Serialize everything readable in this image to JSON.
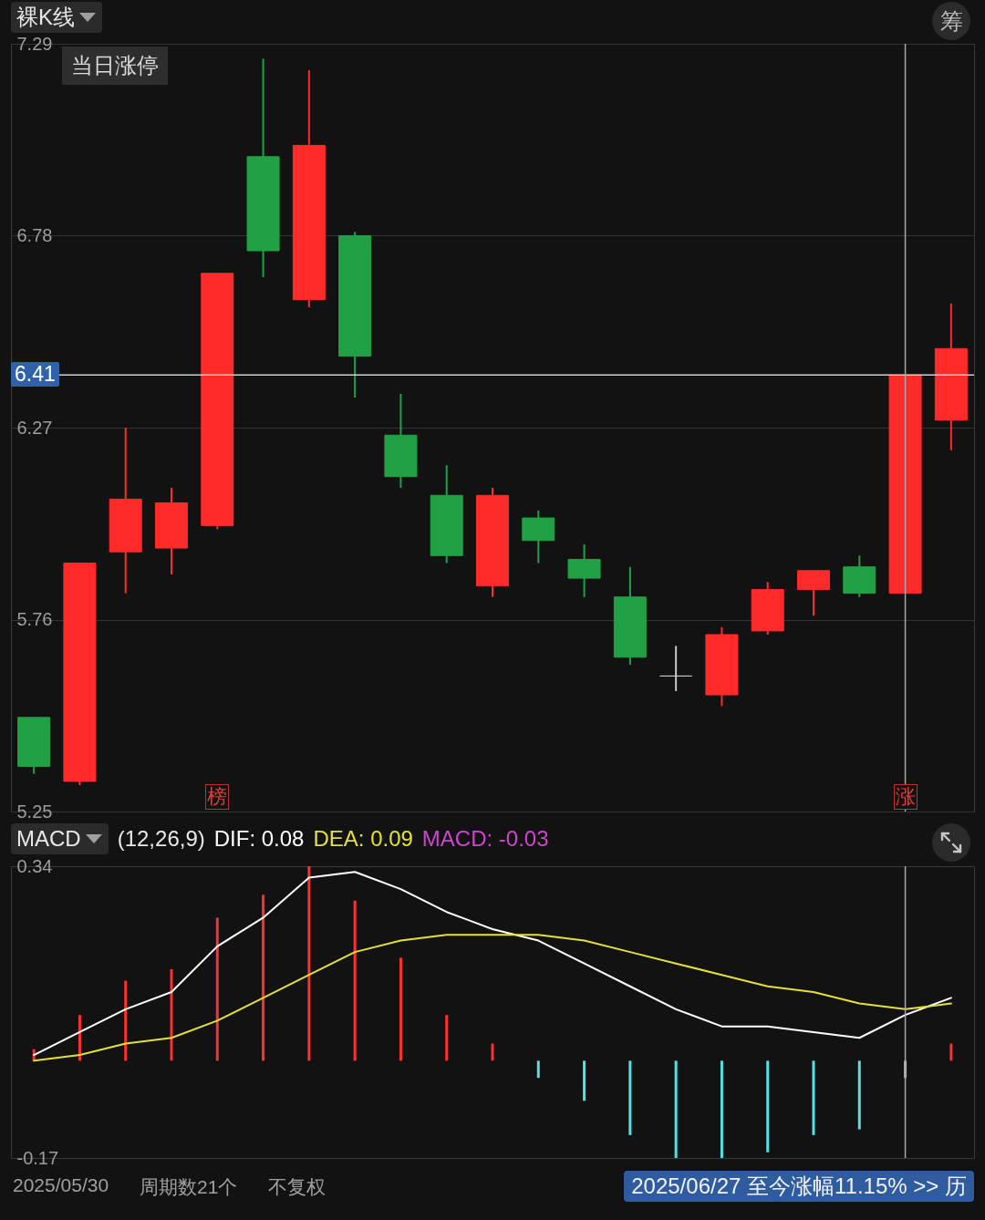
{
  "chart_data": [
    {
      "type": "candlestick",
      "title": "裸K线",
      "categories": [
        null,
        null,
        null,
        null,
        "榜",
        null,
        null,
        null,
        null,
        null,
        null,
        null,
        null,
        null,
        null,
        null,
        null,
        null,
        null,
        "涨",
        null
      ],
      "ohlc": [
        [
          5.5,
          5.5,
          5.35,
          5.37
        ],
        [
          5.33,
          5.91,
          5.32,
          5.91
        ],
        [
          5.94,
          6.27,
          5.83,
          6.08
        ],
        [
          5.95,
          6.11,
          5.88,
          6.07
        ],
        [
          6.01,
          6.68,
          6.0,
          6.68
        ],
        [
          6.99,
          7.25,
          6.67,
          6.74
        ],
        [
          6.61,
          7.22,
          6.59,
          7.02
        ],
        [
          6.78,
          6.79,
          6.35,
          6.46
        ],
        [
          6.25,
          6.36,
          6.11,
          6.14
        ],
        [
          6.09,
          6.17,
          5.91,
          5.93
        ],
        [
          5.85,
          6.11,
          5.82,
          6.09
        ],
        [
          6.03,
          6.05,
          5.91,
          5.97
        ],
        [
          5.92,
          5.96,
          5.82,
          5.87
        ],
        [
          5.82,
          5.9,
          5.64,
          5.66
        ],
        [
          5.61,
          5.69,
          5.57,
          5.61
        ],
        [
          5.56,
          5.74,
          5.53,
          5.72
        ],
        [
          5.73,
          5.86,
          5.72,
          5.84
        ],
        [
          5.84,
          5.89,
          5.77,
          5.89
        ],
        [
          5.9,
          5.93,
          5.82,
          5.83
        ],
        [
          5.83,
          6.41,
          5.83,
          6.41
        ],
        [
          6.29,
          6.6,
          6.21,
          6.48
        ]
      ],
      "colors": [
        "#22a045",
        "#ff2b2b",
        "#ff2b2b",
        "#ff2b2b",
        "#ff2b2b",
        "#22a045",
        "#ff2b2b",
        "#22a045",
        "#22a045",
        "#22a045",
        "#ff2b2b",
        "#22a045",
        "#22a045",
        "#22a045",
        "#c8c8c8",
        "#ff2b2b",
        "#ff2b2b",
        "#ff2b2b",
        "#22a045",
        "#ff2b2b",
        "#ff2b2b"
      ],
      "ylim": [
        5.25,
        7.29
      ],
      "yticks": [
        5.25,
        5.76,
        6.27,
        6.78,
        7.29
      ],
      "grid": "y",
      "ref_lines": [
        {
          "axis": "y",
          "value": 6.41,
          "label": "6.41",
          "color": "#cfcfcf"
        },
        {
          "axis": "x",
          "value": "涨",
          "color": "#a8a8a8"
        }
      ],
      "annotations": [
        "当日涨停",
        "筹"
      ]
    },
    {
      "type": "line",
      "title": "MACD",
      "subtitle": "(12,26,9)",
      "categories": [
        null,
        null,
        null,
        null,
        "榜",
        null,
        null,
        null,
        null,
        null,
        null,
        null,
        null,
        null,
        null,
        null,
        null,
        null,
        null,
        "涨",
        null
      ],
      "series": [
        {
          "name": "DIF: 0.08",
          "color": "#ffffff",
          "values": [
            0.01,
            0.05,
            0.09,
            0.12,
            0.2,
            0.25,
            0.32,
            0.33,
            0.3,
            0.26,
            0.23,
            0.21,
            0.17,
            0.13,
            0.09,
            0.06,
            0.06,
            0.05,
            0.04,
            0.08,
            0.11
          ]
        },
        {
          "name": "DEA: 0.09",
          "color": "#e4e03a",
          "values": [
            0,
            0.01,
            0.03,
            0.04,
            0.07,
            0.11,
            0.15,
            0.19,
            0.21,
            0.22,
            0.22,
            0.22,
            0.21,
            0.19,
            0.17,
            0.15,
            0.13,
            0.12,
            0.1,
            0.09,
            0.1
          ]
        },
        {
          "type": "bar",
          "colors": [
            "#ff3030",
            "#ff3030",
            "#ff3030",
            "#ff3030",
            "#ff3030",
            "#ff3030",
            "#ff3030",
            "#ff3030",
            "#ff3030",
            "#ff3030",
            "#ff3030",
            "#4fe3e3",
            "#4fe3e3",
            "#4fe3e3",
            "#4fe3e3",
            "#4fe3e3",
            "#4fe3e3",
            "#4fe3e3",
            "#4fe3e3",
            "#4fe3e3",
            "#ff3030"
          ],
          "values": [
            0.02,
            0.08,
            0.14,
            0.16,
            0.25,
            0.29,
            0.34,
            0.28,
            0.18,
            0.08,
            0.03,
            -0.03,
            -0.07,
            -0.13,
            -0.17,
            -0.17,
            -0.16,
            -0.13,
            -0.12,
            -0.03,
            0.03
          ]
        }
      ],
      "ylim": [
        -0.17,
        0.34
      ],
      "yticks": [
        -0.17,
        0.34
      ],
      "legend": "top left",
      "tick_labels": "y",
      "ref_lines": [
        {
          "axis": "x",
          "value": "涨",
          "color": "#a8a8a8"
        }
      ],
      "annotations": [
        "MACD: -0.03",
        "2025/05/30",
        "周期数21个",
        "不复权",
        "2025/06/27 至今涨幅11.15% >> 历"
      ]
    }
  ]
}
